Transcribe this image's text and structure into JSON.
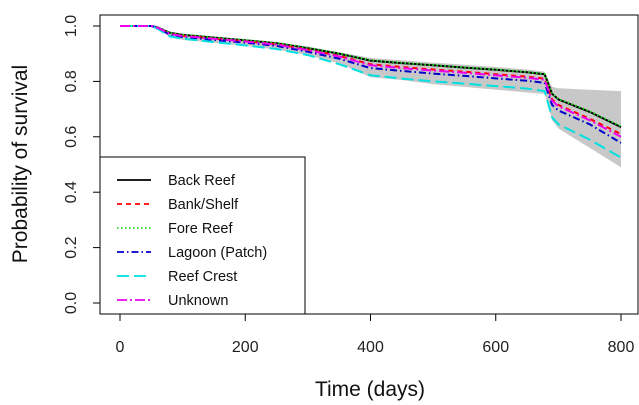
{
  "chart_data": {
    "type": "line",
    "title": "",
    "xlabel": "Time (days)",
    "ylabel": "Probability of survival",
    "xlim": [
      0,
      800
    ],
    "ylim": [
      0,
      1
    ],
    "x_ticks": [
      0,
      200,
      400,
      600,
      800
    ],
    "x_tick_labels": [
      "0",
      "200",
      "400",
      "600",
      "800"
    ],
    "y_ticks": [
      0,
      0.2,
      0.4,
      0.6,
      0.8,
      1.0
    ],
    "y_tick_labels": [
      "0.0",
      "0.2",
      "0.4",
      "0.6",
      "0.8",
      "1.0"
    ],
    "grid": false,
    "legend_position": "bottom-left",
    "confidence_band": {
      "color": "#c8c8c8",
      "x": [
        0,
        50,
        60,
        80,
        100,
        150,
        200,
        250,
        300,
        350,
        400,
        450,
        500,
        550,
        600,
        650,
        678,
        690,
        700,
        750,
        800
      ],
      "upper": [
        1.0,
        1.0,
        0.997,
        0.98,
        0.972,
        0.962,
        0.952,
        0.942,
        0.926,
        0.905,
        0.885,
        0.876,
        0.868,
        0.86,
        0.852,
        0.843,
        0.835,
        0.78,
        0.775,
        0.77,
        0.765
      ],
      "lower": [
        1.0,
        1.0,
        0.992,
        0.96,
        0.95,
        0.94,
        0.928,
        0.915,
        0.895,
        0.865,
        0.815,
        0.805,
        0.79,
        0.78,
        0.77,
        0.76,
        0.755,
        0.66,
        0.63,
        0.56,
        0.49
      ]
    },
    "series": [
      {
        "name": "Back Reef",
        "color": "#000000",
        "dash": "solid",
        "x": [
          0,
          50,
          60,
          80,
          100,
          150,
          200,
          250,
          300,
          350,
          400,
          450,
          500,
          550,
          600,
          650,
          678,
          690,
          700,
          750,
          800
        ],
        "y": [
          1.0,
          1.0,
          0.995,
          0.975,
          0.968,
          0.958,
          0.948,
          0.938,
          0.92,
          0.9,
          0.875,
          0.866,
          0.858,
          0.85,
          0.842,
          0.833,
          0.826,
          0.755,
          0.735,
          0.69,
          0.635
        ]
      },
      {
        "name": "Bank/Shelf",
        "color": "#ff0000",
        "dash": "5,4",
        "x": [
          0,
          50,
          60,
          80,
          100,
          150,
          200,
          250,
          300,
          350,
          400,
          450,
          500,
          550,
          600,
          650,
          678,
          690,
          700,
          750,
          800
        ],
        "y": [
          1.0,
          1.0,
          0.994,
          0.972,
          0.965,
          0.955,
          0.945,
          0.935,
          0.915,
          0.892,
          0.862,
          0.852,
          0.843,
          0.835,
          0.826,
          0.817,
          0.81,
          0.735,
          0.715,
          0.665,
          0.61
        ]
      },
      {
        "name": "Fore Reef",
        "color": "#22dd22",
        "dash": "1.5,2.5",
        "x": [
          0,
          50,
          60,
          80,
          100,
          150,
          200,
          250,
          300,
          350,
          400,
          450,
          500,
          550,
          600,
          650,
          678,
          690,
          700,
          750,
          800
        ],
        "y": [
          1.0,
          1.0,
          0.995,
          0.975,
          0.969,
          0.959,
          0.949,
          0.939,
          0.921,
          0.901,
          0.876,
          0.867,
          0.859,
          0.851,
          0.843,
          0.834,
          0.827,
          0.755,
          0.737,
          0.692,
          0.638
        ]
      },
      {
        "name": "Lagoon (Patch)",
        "color": "#0000cc",
        "dash": "7,3,1.5,3",
        "x": [
          0,
          50,
          60,
          80,
          100,
          150,
          200,
          250,
          300,
          350,
          400,
          450,
          500,
          550,
          600,
          650,
          678,
          690,
          700,
          750,
          800
        ],
        "y": [
          1.0,
          1.0,
          0.993,
          0.968,
          0.96,
          0.95,
          0.94,
          0.928,
          0.907,
          0.882,
          0.848,
          0.838,
          0.828,
          0.82,
          0.811,
          0.802,
          0.795,
          0.715,
          0.695,
          0.645,
          0.578
        ]
      },
      {
        "name": "Reef Crest",
        "color": "#00e0e0",
        "dash": "12,5",
        "x": [
          0,
          50,
          60,
          80,
          100,
          150,
          200,
          250,
          300,
          350,
          400,
          450,
          500,
          550,
          600,
          650,
          678,
          690,
          700,
          750,
          800
        ],
        "y": [
          1.0,
          1.0,
          0.99,
          0.962,
          0.954,
          0.942,
          0.93,
          0.917,
          0.895,
          0.862,
          0.822,
          0.81,
          0.8,
          0.792,
          0.783,
          0.774,
          0.765,
          0.67,
          0.645,
          0.59,
          0.525
        ]
      },
      {
        "name": "Unknown",
        "color": "#ee00ee",
        "dash": "10,3,2,3",
        "x": [
          0,
          50,
          60,
          80,
          100,
          150,
          200,
          250,
          300,
          350,
          400,
          450,
          500,
          550,
          600,
          650,
          678,
          690,
          700,
          750,
          800
        ],
        "y": [
          1.0,
          1.0,
          0.994,
          0.971,
          0.964,
          0.954,
          0.944,
          0.933,
          0.913,
          0.89,
          0.858,
          0.848,
          0.839,
          0.831,
          0.822,
          0.813,
          0.806,
          0.73,
          0.71,
          0.66,
          0.6
        ]
      }
    ]
  }
}
